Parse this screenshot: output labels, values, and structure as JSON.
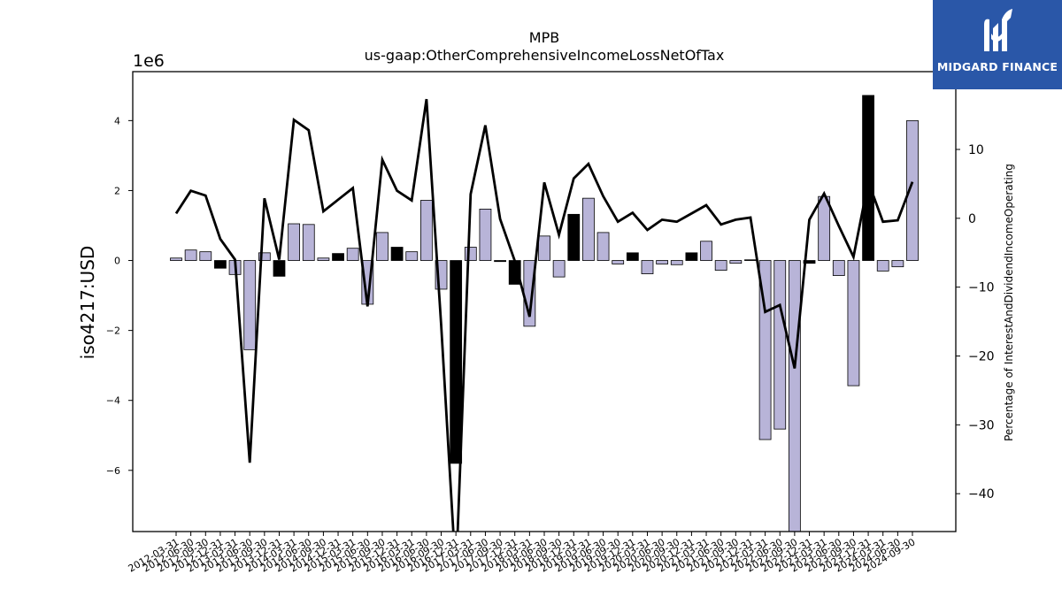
{
  "brand": {
    "name": "MIDGARD FINANCE",
    "color": "#2a57a8"
  },
  "chart_data": {
    "type": "bar",
    "title": "MPB",
    "subtitle": "us-gaap:OtherComprehensiveIncomeLossNetOfTax",
    "ylabel": "iso4217:USD",
    "y_offset_label": "1e6",
    "y2label": "Percentage of InterestAndDividendIncomeOperating",
    "ylim": [
      -7.75,
      5.4
    ],
    "y2lim": [
      -45.5,
      21.3
    ],
    "yticks": [
      -6,
      -4,
      -2,
      0,
      2,
      4
    ],
    "y2ticks": [
      -40,
      -30,
      -20,
      -10,
      0,
      10
    ],
    "colors": {
      "positive": "#b8b4d8",
      "negative": "#000000",
      "line": "#000000"
    },
    "categories": [
      "2012-03-31",
      "2012-06-30",
      "2012-09-30",
      "2012-12-31",
      "2013-03-31",
      "2013-06-30",
      "2013-09-30",
      "2013-12-31",
      "2014-03-31",
      "2014-06-30",
      "2014-09-30",
      "2014-12-31",
      "2015-03-31",
      "2015-06-30",
      "2015-09-30",
      "2015-12-31",
      "2016-03-31",
      "2016-06-30",
      "2016-09-30",
      "2016-12-31",
      "2017-03-31",
      "2017-06-30",
      "2017-09-30",
      "2017-12-31",
      "2018-03-31",
      "2018-06-30",
      "2018-09-30",
      "2018-12-31",
      "2019-03-31",
      "2019-06-30",
      "2019-09-30",
      "2019-12-31",
      "2020-03-31",
      "2020-06-30",
      "2020-09-30",
      "2020-12-31",
      "2021-03-31",
      "2021-06-30",
      "2021-09-30",
      "2021-12-31",
      "2022-03-31",
      "2022-06-30",
      "2022-09-30",
      "2022-12-31",
      "2023-03-31",
      "2023-06-30",
      "2023-09-30",
      "2023-12-31",
      "2024-03-31",
      "2024-06-30",
      "2024-09-30"
    ],
    "series": [
      {
        "kind": "bar",
        "axis": "left",
        "values": [
          0.07,
          0.3,
          0.25,
          -0.22,
          -0.4,
          -2.55,
          0.22,
          -0.45,
          1.05,
          1.03,
          0.07,
          0.2,
          0.35,
          -1.25,
          0.8,
          0.38,
          0.25,
          1.72,
          -0.82,
          -5.8,
          0.38,
          1.47,
          -0.03,
          -0.68,
          -1.88,
          0.7,
          -0.47,
          1.32,
          1.78,
          0.8,
          -0.1,
          0.22,
          -0.38,
          -0.1,
          -0.12,
          0.22,
          0.55,
          -0.28,
          -0.08,
          0.02,
          -5.12,
          -4.82,
          -7.8,
          -0.08,
          1.83,
          -0.43,
          -3.58,
          4.72,
          -0.3,
          -0.18,
          4.0
        ],
        "colors": [
          "L",
          "L",
          "L",
          "D",
          "L",
          "L",
          "L",
          "D",
          "L",
          "L",
          "L",
          "D",
          "L",
          "L",
          "L",
          "D",
          "L",
          "L",
          "L",
          "D",
          "L",
          "L",
          "D",
          "D",
          "L",
          "L",
          "L",
          "D",
          "L",
          "L",
          "L",
          "D",
          "L",
          "L",
          "L",
          "D",
          "L",
          "L",
          "L",
          "D",
          "L",
          "L",
          "L",
          "D",
          "L",
          "L",
          "L",
          "D",
          "L",
          "L",
          "L"
        ]
      },
      {
        "kind": "line",
        "axis": "right",
        "values": [
          0.7,
          4.0,
          3.3,
          -3.0,
          -6.0,
          -35.5,
          2.9,
          -6.0,
          14.3,
          12.8,
          1.0,
          2.7,
          4.4,
          -12.8,
          8.5,
          4.0,
          2.6,
          17.3,
          -15.5,
          -52.0,
          3.5,
          13.5,
          -0.1,
          -6.2,
          -14.3,
          5.2,
          -2.4,
          5.8,
          7.9,
          3.2,
          -0.5,
          0.8,
          -1.7,
          -0.2,
          -0.5,
          0.7,
          1.9,
          -0.9,
          -0.2,
          0.1,
          -13.6,
          -12.6,
          -21.8,
          -0.2,
          3.6,
          -1.1,
          -5.6,
          5.3,
          -0.5,
          -0.3,
          5.3
        ]
      }
    ]
  }
}
